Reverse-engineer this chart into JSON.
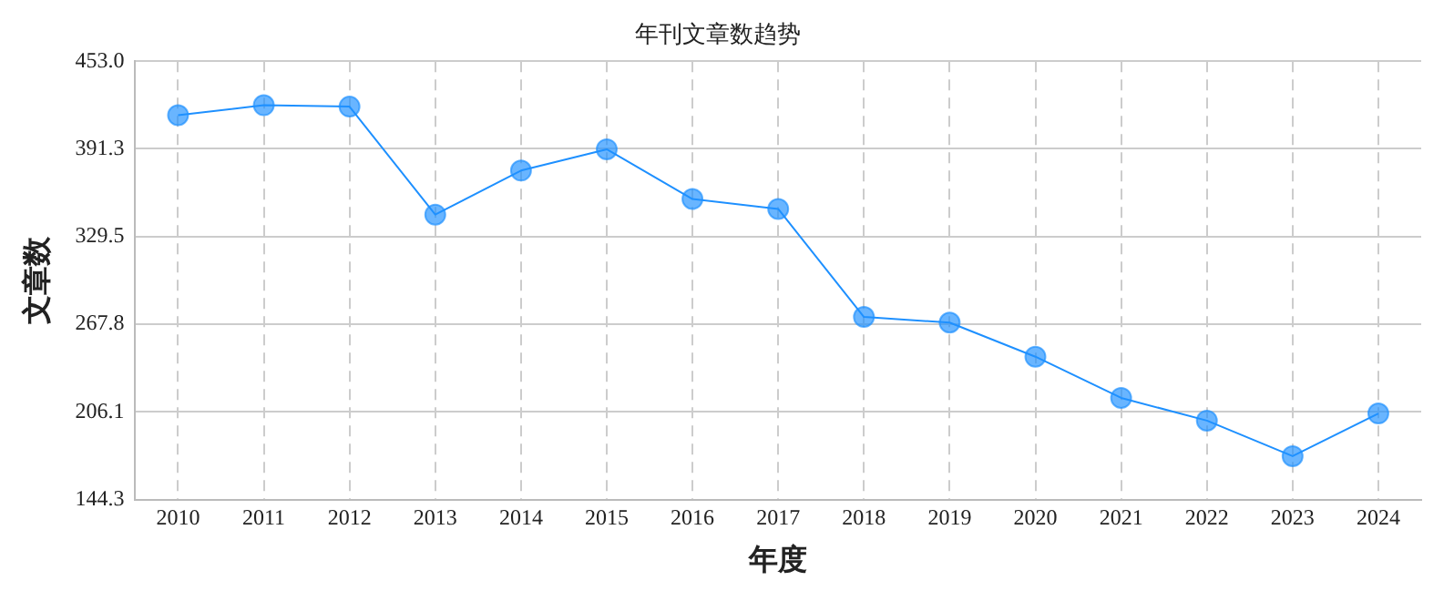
{
  "chart_data": {
    "type": "line",
    "title": "年刊文章数趋势",
    "xlabel": "年度",
    "ylabel": "文章数",
    "categories": [
      "2010",
      "2011",
      "2012",
      "2013",
      "2014",
      "2015",
      "2016",
      "2017",
      "2018",
      "2019",
      "2020",
      "2021",
      "2022",
      "2023",
      "2024"
    ],
    "series": [
      {
        "color": "#1e90ff",
        "values": [
          415,
          422,
          421,
          345,
          376,
          391,
          356,
          349,
          273,
          269,
          245,
          216,
          200,
          175,
          205
        ]
      }
    ],
    "ylim": [
      144.3,
      453.0
    ],
    "yticks": [
      144.3,
      206.1,
      267.8,
      329.5,
      391.3,
      {
        "value": 453.0,
        "label": "453.0"
      }
    ],
    "grid": true,
    "marker": "circle",
    "line_style": "solid",
    "legend": false
  }
}
